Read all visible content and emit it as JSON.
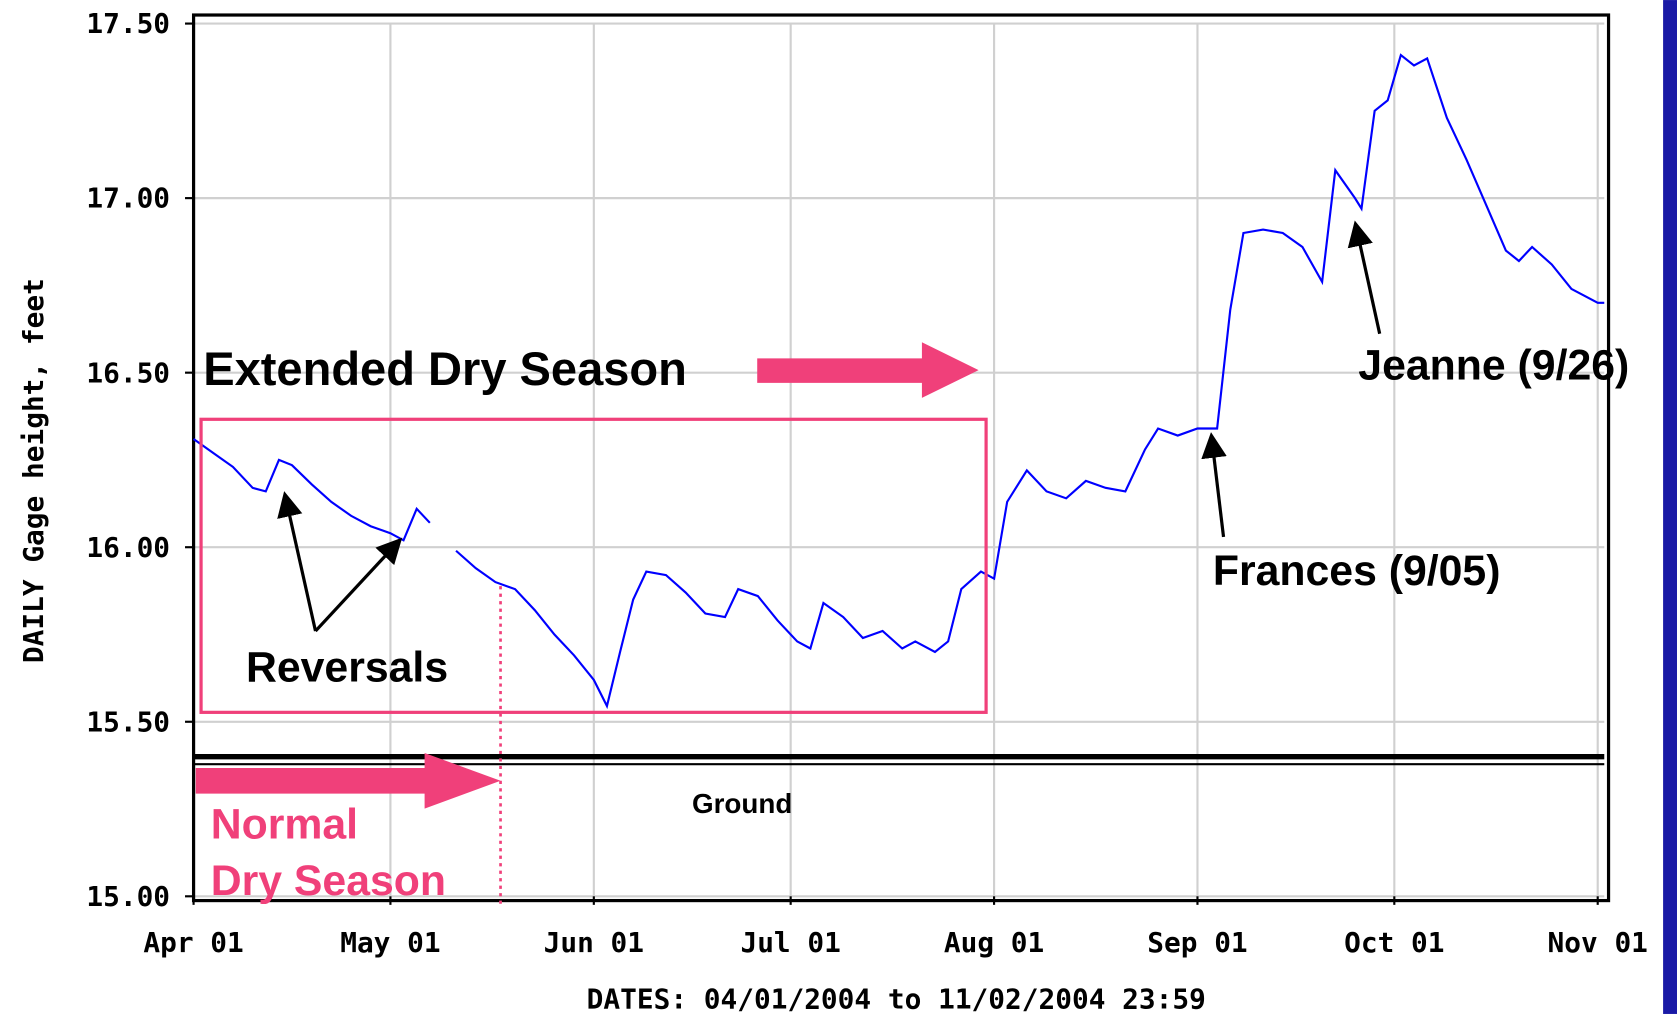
{
  "chart_data": {
    "type": "line",
    "ylabel": "DAILY Gage height, feet",
    "xlabel": "DATES: 04/01/2004 to 11/02/2004 23:59",
    "xlim": [
      "2004-04-01",
      "2004-11-02"
    ],
    "xticks": [
      {
        "value": "2004-04-01",
        "label": "Apr 01"
      },
      {
        "value": "2004-05-01",
        "label": "May 01"
      },
      {
        "value": "2004-06-01",
        "label": "Jun 01"
      },
      {
        "value": "2004-07-01",
        "label": "Jul 01"
      },
      {
        "value": "2004-08-01",
        "label": "Aug 01"
      },
      {
        "value": "2004-09-01",
        "label": "Sep 01"
      },
      {
        "value": "2004-10-01",
        "label": "Oct 01"
      },
      {
        "value": "2004-11-01",
        "label": "Nov 01"
      }
    ],
    "ylim": [
      15.0,
      17.5
    ],
    "yticks": [
      {
        "value": 15.0,
        "label": "15.00"
      },
      {
        "value": 15.5,
        "label": "15.50"
      },
      {
        "value": 16.0,
        "label": "16.00"
      },
      {
        "value": 16.5,
        "label": "16.50"
      },
      {
        "value": 17.0,
        "label": "17.00"
      },
      {
        "value": 17.5,
        "label": "17.50"
      }
    ],
    "grid": true,
    "x": [
      "2004-04-01",
      "2004-04-04",
      "2004-04-07",
      "2004-04-10",
      "2004-04-12",
      "2004-04-14",
      "2004-04-16",
      "2004-04-19",
      "2004-04-22",
      "2004-04-25",
      "2004-04-28",
      "2004-05-01",
      "2004-05-03",
      "2004-05-05",
      "2004-05-07",
      "2004-05-09",
      "2004-05-11",
      "2004-05-14",
      "2004-05-17",
      "2004-05-20",
      "2004-05-23",
      "2004-05-26",
      "2004-05-29",
      "2004-06-01",
      "2004-06-03",
      "2004-06-05",
      "2004-06-07",
      "2004-06-09",
      "2004-06-12",
      "2004-06-15",
      "2004-06-18",
      "2004-06-21",
      "2004-06-23",
      "2004-06-26",
      "2004-06-29",
      "2004-07-02",
      "2004-07-04",
      "2004-07-06",
      "2004-07-09",
      "2004-07-12",
      "2004-07-15",
      "2004-07-18",
      "2004-07-20",
      "2004-07-23",
      "2004-07-25",
      "2004-07-27",
      "2004-07-30",
      "2004-08-01",
      "2004-08-03",
      "2004-08-06",
      "2004-08-09",
      "2004-08-12",
      "2004-08-15",
      "2004-08-18",
      "2004-08-21",
      "2004-08-24",
      "2004-08-26",
      "2004-08-29",
      "2004-09-01",
      "2004-09-04",
      "2004-09-06",
      "2004-09-08",
      "2004-09-11",
      "2004-09-14",
      "2004-09-17",
      "2004-09-20",
      "2004-09-22",
      "2004-09-25",
      "2004-09-26",
      "2004-09-28",
      "2004-09-30",
      "2004-10-02",
      "2004-10-04",
      "2004-10-06",
      "2004-10-09",
      "2004-10-12",
      "2004-10-15",
      "2004-10-18",
      "2004-10-20",
      "2004-10-22",
      "2004-10-25",
      "2004-10-28",
      "2004-11-01",
      "2004-11-02"
    ],
    "series": [
      {
        "name": "Gage height",
        "color": "#0000ff",
        "values": [
          16.31,
          16.27,
          16.23,
          16.17,
          16.16,
          16.25,
          16.235,
          16.18,
          16.13,
          16.09,
          16.06,
          16.04,
          16.02,
          16.11,
          16.07,
          null,
          15.99,
          15.94,
          15.9,
          15.88,
          15.82,
          15.75,
          15.69,
          15.62,
          15.545,
          15.7,
          15.85,
          15.93,
          15.92,
          15.87,
          15.81,
          15.8,
          15.88,
          15.86,
          15.79,
          15.73,
          15.71,
          15.84,
          15.8,
          15.74,
          15.76,
          15.71,
          15.73,
          15.7,
          15.73,
          15.88,
          15.93,
          15.91,
          16.13,
          16.22,
          16.16,
          16.14,
          16.19,
          16.17,
          16.16,
          16.28,
          16.34,
          16.32,
          16.34,
          16.34,
          16.68,
          16.9,
          16.91,
          16.9,
          16.86,
          16.76,
          17.08,
          17.0,
          16.97,
          17.25,
          17.28,
          17.41,
          17.38,
          17.4,
          17.23,
          17.11,
          16.98,
          16.85,
          16.82,
          16.86,
          16.81,
          16.74,
          16.7,
          16.7
        ]
      }
    ],
    "ground_level": 15.4,
    "annotations": {
      "extended": "Extended Dry Season",
      "reversals": "Reversals",
      "normal": [
        "Normal",
        "Dry Season"
      ],
      "ground": "Ground",
      "frances": "Frances (9/05)",
      "jeanne": "Jeanne (9/26)"
    }
  }
}
